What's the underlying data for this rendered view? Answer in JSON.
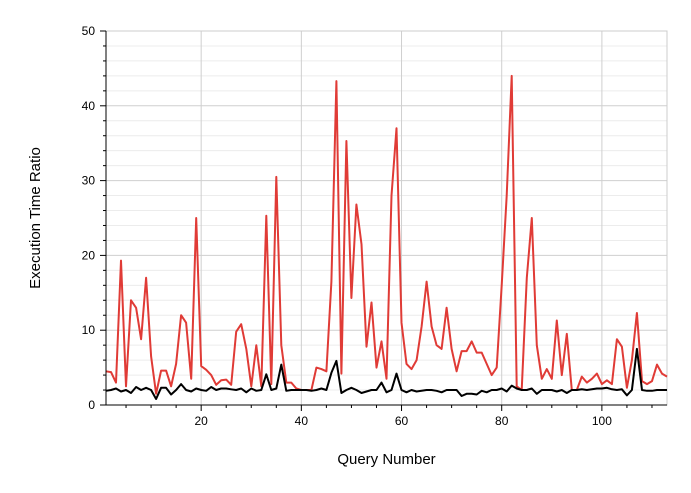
{
  "chart_data": {
    "type": "line",
    "title": "",
    "xlabel": "Query Number",
    "ylabel": "Execution Time Ratio",
    "xlim": [
      1,
      113
    ],
    "ylim": [
      0,
      50
    ],
    "x_ticks": [
      20,
      40,
      60,
      80,
      100
    ],
    "y_ticks": [
      0,
      10,
      20,
      30,
      40,
      50
    ],
    "grid": true,
    "legend": "none",
    "x": [
      1,
      2,
      3,
      4,
      5,
      6,
      7,
      8,
      9,
      10,
      11,
      12,
      13,
      14,
      15,
      16,
      17,
      18,
      19,
      20,
      21,
      22,
      23,
      24,
      25,
      26,
      27,
      28,
      29,
      30,
      31,
      32,
      33,
      34,
      35,
      36,
      37,
      38,
      39,
      40,
      41,
      42,
      43,
      44,
      45,
      46,
      47,
      48,
      49,
      50,
      51,
      52,
      53,
      54,
      55,
      56,
      57,
      58,
      59,
      60,
      61,
      62,
      63,
      64,
      65,
      66,
      67,
      68,
      69,
      70,
      71,
      72,
      73,
      74,
      75,
      76,
      77,
      78,
      79,
      80,
      81,
      82,
      83,
      84,
      85,
      86,
      87,
      88,
      89,
      90,
      91,
      92,
      93,
      94,
      95,
      96,
      97,
      98,
      99,
      100,
      101,
      102,
      103,
      104,
      105,
      106,
      107,
      108,
      109,
      110,
      111,
      112,
      113
    ],
    "series": [
      {
        "color": "#e03b36",
        "values": [
          4.5,
          4.4,
          3,
          19.3,
          2.5,
          14,
          13,
          8.8,
          17,
          6.5,
          1.5,
          4.6,
          4.6,
          2.5,
          5.5,
          12,
          11,
          3.5,
          25,
          5.2,
          4.7,
          4,
          2.7,
          3.3,
          3.4,
          2.7,
          9.8,
          10.8,
          7.5,
          2.5,
          8,
          2.5,
          25.3,
          2.8,
          30.5,
          8,
          3,
          3,
          2.2,
          2,
          2,
          2,
          5,
          4.8,
          4.5,
          16.5,
          43.3,
          4.2,
          35.3,
          14.3,
          26.8,
          21.5,
          7.8,
          13.7,
          5,
          8.5,
          3.5,
          28,
          37,
          11,
          5.5,
          4.8,
          6,
          10.5,
          16.5,
          10.5,
          8,
          7.5,
          13,
          7.5,
          4.5,
          7.2,
          7.2,
          8.5,
          7,
          7,
          5.5,
          4,
          5,
          16,
          28,
          44,
          2.5,
          2,
          17,
          25,
          8,
          3.5,
          4.8,
          3.5,
          11.3,
          4,
          9.5,
          2,
          2,
          3.8,
          3,
          3.5,
          4.2,
          2.8,
          3.3,
          2.8,
          8.8,
          7.8,
          2.3,
          6,
          12.3,
          3.2,
          2.8,
          3.2,
          5.4,
          4.2,
          3.8
        ]
      },
      {
        "color": "#000000",
        "values": [
          1.9,
          2,
          2.2,
          1.8,
          2,
          1.6,
          2.4,
          2,
          2.3,
          2,
          0.8,
          2.3,
          2.3,
          1.4,
          2,
          2.8,
          2,
          1.8,
          2.2,
          2,
          1.9,
          2.4,
          2,
          2.2,
          2.2,
          2.1,
          2,
          2.2,
          1.7,
          2.2,
          1.9,
          2,
          4.1,
          2,
          2.2,
          5.4,
          1.9,
          2,
          2,
          2,
          2,
          1.9,
          2,
          2.2,
          2,
          4.3,
          5.9,
          1.6,
          2,
          2.3,
          2,
          1.6,
          1.8,
          2,
          2,
          3,
          1.7,
          2,
          4.2,
          2,
          1.7,
          2,
          1.8,
          1.9,
          2,
          2,
          1.9,
          1.7,
          2,
          2,
          2,
          1.2,
          1.5,
          1.5,
          1.4,
          1.9,
          1.7,
          2,
          2,
          2.2,
          1.8,
          2.6,
          2.2,
          2,
          2,
          2.2,
          1.5,
          2,
          2,
          2,
          1.8,
          2,
          1.6,
          2,
          2,
          2.1,
          2,
          2.1,
          2.2,
          2.2,
          2.3,
          2.1,
          2,
          2.1,
          1.3,
          2,
          7.5,
          2,
          1.9,
          1.9,
          2,
          2,
          2
        ]
      }
    ]
  }
}
